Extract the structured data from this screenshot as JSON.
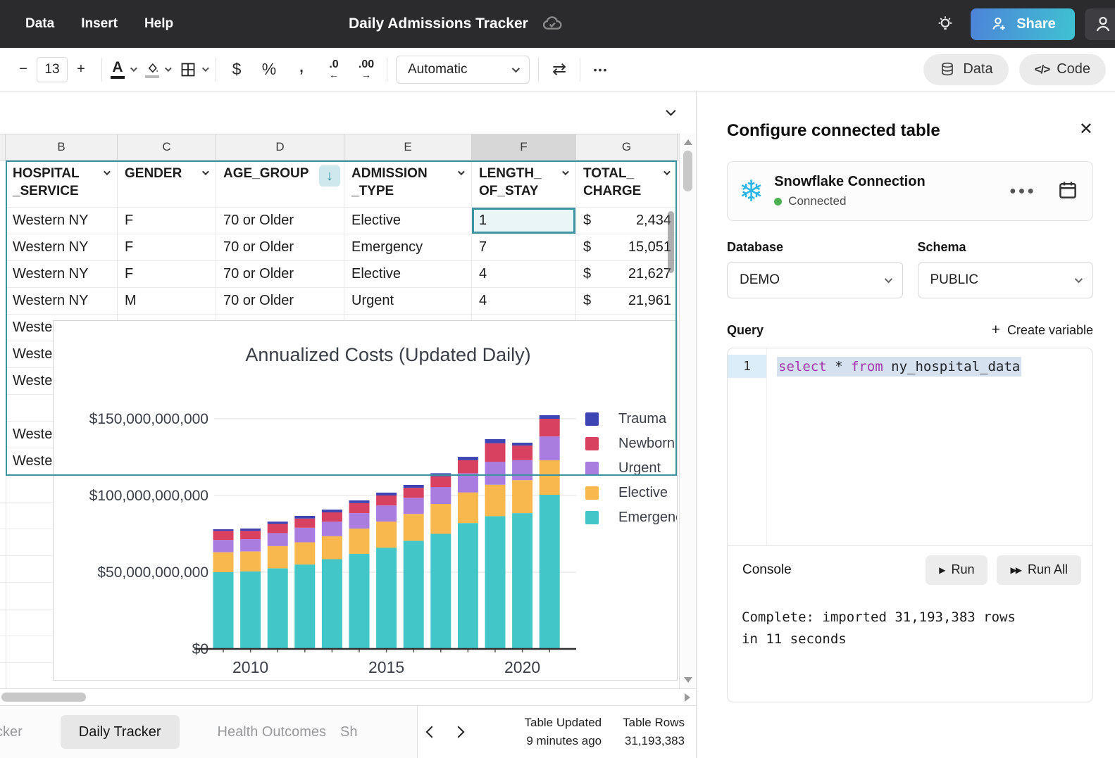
{
  "app": {
    "menu": [
      "Data",
      "Insert",
      "Help"
    ],
    "title": "Daily Admissions Tracker",
    "share_label": "Share"
  },
  "toolbar": {
    "font_size": "13",
    "format_mode": "Automatic",
    "data_button": "Data",
    "code_button": "Code",
    "code_glyph": "</>",
    "minus": "−",
    "plus": "+",
    "dollar": "$",
    "percent": "%",
    "comma": ",",
    "dec_decrease": ".0",
    "dec_increase": ".00",
    "ellipsis": "•••",
    "swap_glyph": "⇄",
    "text_color_letter": "A"
  },
  "icons": {
    "topbar": [
      "cloud-check-icon",
      "lightbulb-icon",
      "share-person-plus-icon",
      "avatar-icon"
    ],
    "toolbar": [
      "text-color-icon",
      "fill-color-icon",
      "borders-icon",
      "currency-icon",
      "percent-icon",
      "comma-icon",
      "decrease-decimals-icon",
      "increase-decimals-icon",
      "swap-icon",
      "more-icon",
      "database-icon",
      "code-icon"
    ],
    "panel": [
      "snowflake-icon",
      "calendar-icon",
      "close-icon",
      "more-icon",
      "run-icon",
      "run-all-icon"
    ]
  },
  "grid": {
    "column_letters": [
      "B",
      "C",
      "D",
      "E",
      "F",
      "G"
    ],
    "selected_column_letter": "F",
    "table": {
      "headers": [
        "HOSPITAL\n_SERVICE",
        "GENDER",
        "AGE_GROUP",
        "ADMISSION\n_TYPE",
        "LENGTH_\nOF_STAY",
        "TOTAL_\nCHARGE"
      ],
      "sorted_column_index": 2,
      "sort_arrow": "↓",
      "currency_symbol": "$",
      "currency_column_index": 5,
      "selected_cell": {
        "row": 0,
        "col": 4,
        "value": "1"
      },
      "rows": [
        [
          "Western NY",
          "F",
          "70 or Older",
          "Elective",
          "1",
          "2,434"
        ],
        [
          "Western NY",
          "F",
          "70 or Older",
          "Emergency",
          "7",
          "15,051"
        ],
        [
          "Western NY",
          "F",
          "70 or Older",
          "Elective",
          "4",
          "21,627"
        ],
        [
          "Western NY",
          "M",
          "70 or Older",
          "Urgent",
          "4",
          "21,961"
        ],
        [
          "Western NY",
          "",
          "",
          "",
          "",
          ""
        ],
        [
          "Western NY",
          "",
          "",
          "",
          "",
          ""
        ],
        [
          "Western NY",
          "",
          "",
          "",
          "",
          ""
        ],
        [
          "",
          "",
          "",
          "",
          "",
          ""
        ],
        [
          "Western NY",
          "",
          "",
          "",
          "",
          ""
        ],
        [
          "Western NY",
          "",
          "",
          "",
          "",
          ""
        ]
      ]
    }
  },
  "chart_data": {
    "type": "bar",
    "stacked": true,
    "title": "Annualized Costs (Updated Daily)",
    "xlabel": "",
    "ylabel": "",
    "unit": "USD",
    "grid": true,
    "legend_position": "right",
    "x": [
      2009,
      2010,
      2011,
      2012,
      2013,
      2014,
      2015,
      2016,
      2017,
      2018,
      2019,
      2020,
      2021
    ],
    "x_ticks": [
      {
        "label": "2010",
        "index": 1
      },
      {
        "label": "2015",
        "index": 6
      },
      {
        "label": "2020",
        "index": 11
      }
    ],
    "ylim_billions": [
      0,
      155
    ],
    "y_ticks": [
      {
        "label": "$0",
        "value_billions": 0
      },
      {
        "label": "$50,000,000,000",
        "value_billions": 50
      },
      {
        "label": "$100,000,000,000",
        "value_billions": 100
      },
      {
        "label": "$150,000,000,000",
        "value_billions": 150
      }
    ],
    "series": [
      {
        "name": "Emergency",
        "color": "#43c6c8",
        "values_billions": [
          50,
          50.5,
          52.5,
          55,
          58.5,
          62,
          66,
          70.5,
          75,
          82,
          86.5,
          88.5,
          100.5
        ]
      },
      {
        "name": "Elective",
        "color": "#f9b84e",
        "values_billions": [
          13,
          13,
          14.5,
          14.5,
          15,
          16.5,
          17,
          17.5,
          19.5,
          20,
          20.5,
          21.5,
          22.5
        ]
      },
      {
        "name": "Urgent",
        "color": "#a97de0",
        "values_billions": [
          8,
          8,
          8.5,
          9.5,
          9.5,
          10,
          10.5,
          10.5,
          11,
          12.5,
          15,
          13,
          15.5
        ]
      },
      {
        "name": "Newborn",
        "color": "#d8415f",
        "values_billions": [
          6,
          5.5,
          6,
          6,
          6,
          6.5,
          6.5,
          6.5,
          7,
          8.5,
          12,
          9.5,
          11.5
        ]
      },
      {
        "name": "Trauma",
        "color": "#3d45b4",
        "values_billions": [
          1,
          1.5,
          1.5,
          1.7,
          1.8,
          1.8,
          1.9,
          1.9,
          2,
          2.2,
          2.7,
          1.9,
          2.3
        ]
      }
    ],
    "legend_order_top_to_bottom": [
      "Trauma",
      "Newborn",
      "Urgent",
      "Elective",
      "Emergency"
    ]
  },
  "statusbar": {
    "tabs": [
      {
        "label": "cker",
        "active": false,
        "partial": true
      },
      {
        "label": "Daily Tracker",
        "active": true,
        "partial": false
      },
      {
        "label": "Health Outcomes",
        "active": false,
        "partial": false
      },
      {
        "label": "Sh",
        "active": false,
        "partial": true
      }
    ],
    "table_updated_label": "Table Updated",
    "table_updated_value": "9 minutes ago",
    "table_rows_label": "Table Rows",
    "table_rows_value": "31,193,383"
  },
  "panel": {
    "title": "Configure connected table",
    "connection": {
      "name": "Snowflake Connection",
      "status": "Connected"
    },
    "database": {
      "label": "Database",
      "value": "DEMO"
    },
    "schema": {
      "label": "Schema",
      "value": "PUBLIC"
    },
    "query": {
      "label": "Query",
      "create_variable": "Create variable",
      "line_number": "1",
      "code_tokens": [
        {
          "text": "select",
          "kw": true
        },
        {
          "text": " * ",
          "kw": false
        },
        {
          "text": "from",
          "kw": true
        },
        {
          "text": " ny_hospital_data",
          "kw": false
        }
      ]
    },
    "console": {
      "label": "Console",
      "run": "Run",
      "run_all": "Run All",
      "output": "Complete: imported 31,193,383 rows in 11 seconds"
    }
  },
  "colors": {
    "accent_teal": "#3d94a0",
    "selected_cell_fill": "#e9f5f6",
    "topbar_bg": "#2b2b2e",
    "share_gradient": [
      "#4d83d8",
      "#3fc2d1"
    ],
    "snowflake_blue": "#29b5e8",
    "connected_green": "#4caf50",
    "keyword_purple": "#a537ad"
  }
}
